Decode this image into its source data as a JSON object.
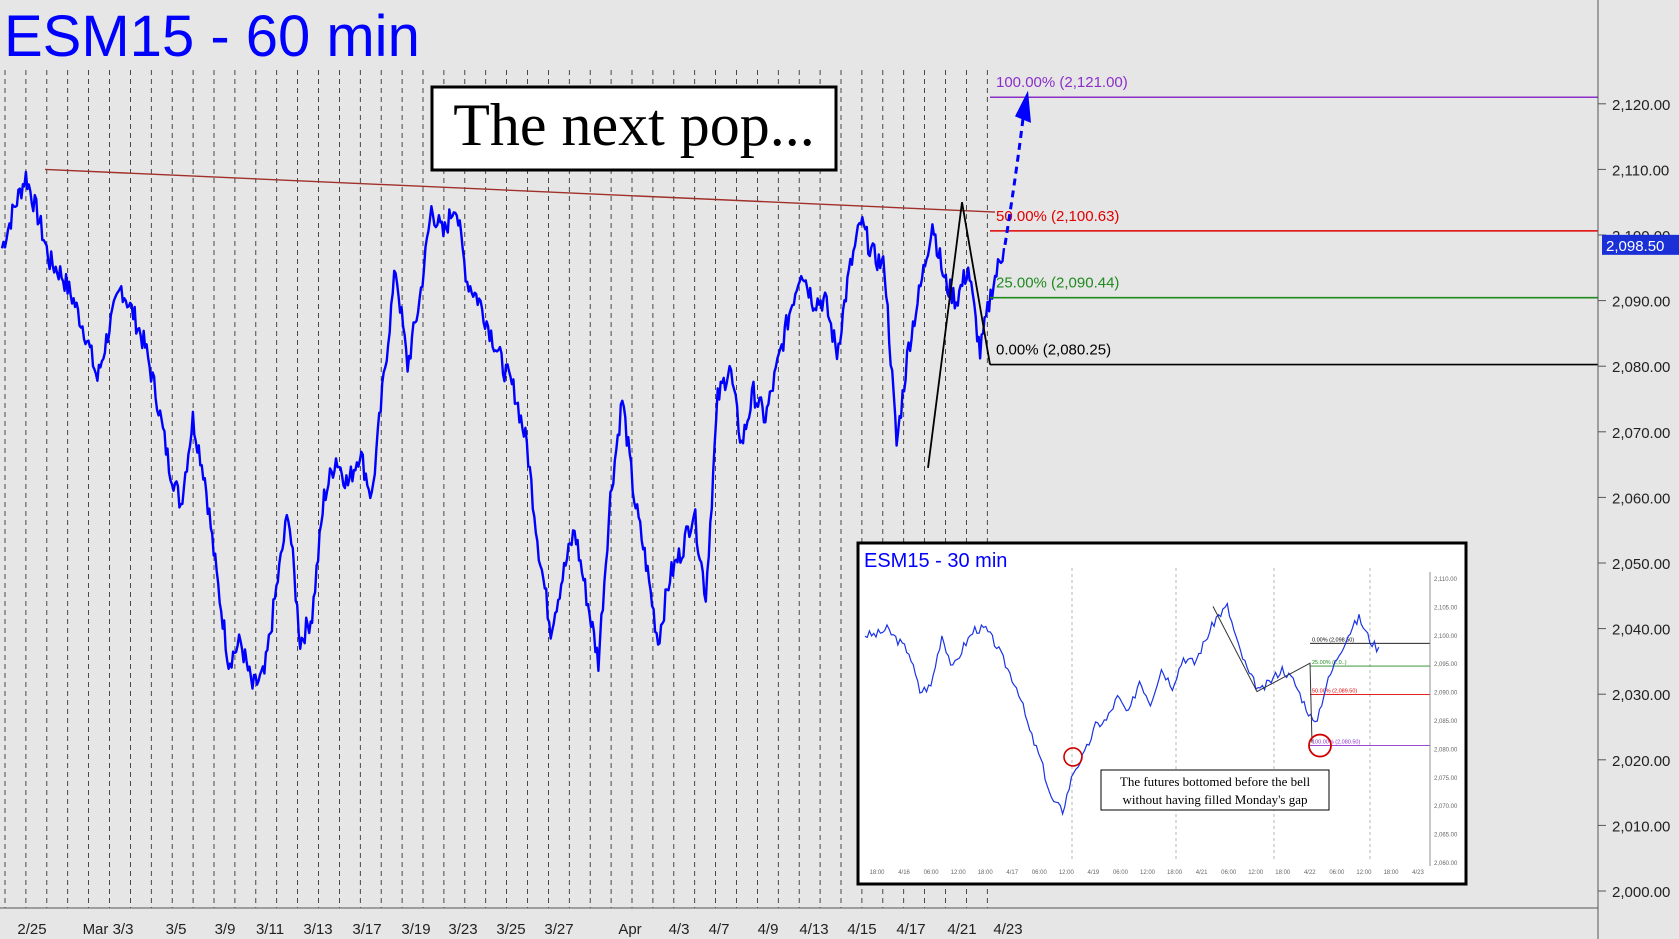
{
  "title": "ESM15 - 60 min",
  "annotation": "The next pop...",
  "colors": {
    "background": "#e6e6e6",
    "price_line": "#0000ff",
    "fib_100": "#8b2fc9",
    "fib_50": "#e00000",
    "fib_25": "#1f8a1f",
    "fib_0": "#000000",
    "trendline": "#a0302a",
    "gridline": "#222222"
  },
  "chart_data": {
    "type": "line",
    "title": "ESM15 - 60 min",
    "xlabel": "",
    "ylabel": "",
    "ylim": [
      1998,
      2134
    ],
    "yticks": [
      2000,
      2010,
      2020,
      2030,
      2040,
      2050,
      2060,
      2070,
      2080,
      2090,
      2100,
      2110,
      2120
    ],
    "ytick_labels": [
      "2,000.00",
      "2,010.00",
      "2,020.00",
      "2,030.00",
      "2,040.00",
      "2,050.00",
      "2,060.00",
      "2,070.00",
      "2,080.00",
      "2,090.00",
      "2,100.00",
      "2,110.00",
      "2,120.00"
    ],
    "xticks": [
      "2/25",
      "Mar 3/3",
      "3/5",
      "3/9",
      "3/11",
      "3/13",
      "3/17",
      "3/19",
      "3/23",
      "3/25",
      "3/27",
      "Apr",
      "4/3",
      "4/7",
      "4/9",
      "4/13",
      "4/15",
      "4/17",
      "4/21",
      "4/23"
    ],
    "grid": true,
    "last_price": 2098.5,
    "last_price_label": "2,098.50",
    "series": [
      {
        "values": [
          2098,
          2104,
          2109,
          2103,
          2096,
          2094,
          2090,
          2085,
          2078,
          2086,
          2092,
          2088,
          2083,
          2075,
          2065,
          2059,
          2072,
          2063,
          2048,
          2035,
          2038,
          2031,
          2033,
          2046,
          2058,
          2038,
          2042,
          2060,
          2066,
          2062,
          2067,
          2060,
          2078,
          2095,
          2080,
          2090,
          2104,
          2100,
          2105,
          2093,
          2090,
          2085,
          2080,
          2076,
          2068,
          2052,
          2040,
          2048,
          2055,
          2045,
          2035,
          2060,
          2075,
          2060,
          2050,
          2038,
          2048,
          2052,
          2058,
          2045,
          2075,
          2080,
          2068,
          2076,
          2072,
          2080,
          2088,
          2095,
          2090,
          2090,
          2082,
          2094,
          2102,
          2097,
          2095,
          2068,
          2083,
          2092,
          2102,
          2093,
          2090,
          2095,
          2082,
          2092,
          2098
        ]
      }
    ],
    "fib_levels": [
      {
        "label": "100.00% (2,121.00)",
        "value": 2121.0
      },
      {
        "label": "50.00% (2,100.63)",
        "value": 2100.63
      },
      {
        "label": "25.00% (2,090.44)",
        "value": 2090.44
      },
      {
        "label": "0.00% (2,080.25)",
        "value": 2080.25
      }
    ]
  },
  "inset": {
    "title": "ESM15 - 30 min",
    "annotation_line1": "The futures bottomed before the bell",
    "annotation_line2": "without having filled Monday's gap",
    "y_labels": [
      "2,110.00",
      "2,105.00",
      "2,100.00",
      "2,095.00",
      "2,090.00",
      "2,085.00",
      "2,080.00",
      "2,075.00",
      "2,070.00",
      "2,065.00",
      "2,060.00"
    ],
    "x_labels": [
      "18:00",
      "4/16",
      "06:00",
      "12:00",
      "18:00",
      "4/17",
      "06:00",
      "12:00",
      "4/19",
      "06:00",
      "12:00",
      "18:00",
      "4/21",
      "06:00",
      "12:00",
      "18:00",
      "4/22",
      "06:00",
      "12:00",
      "18:00",
      "4/23"
    ],
    "fib_labels": [
      "0.00% (2,098.50)",
      "25.00% (2,0..)",
      "50.00% (2,089.50)",
      "100.00% (2,080.50)"
    ],
    "series": [
      2100,
      2100,
      2101,
      2099,
      2097,
      2090,
      2091,
      2100,
      2094,
      2098,
      2101,
      2101,
      2098,
      2094,
      2090,
      2083,
      2078,
      2071,
      2069,
      2076,
      2079,
      2084,
      2085,
      2089,
      2086,
      2092,
      2088,
      2094,
      2091,
      2096,
      2095,
      2099,
      2103,
      2105,
      2098,
      2093,
      2090,
      2092,
      2094,
      2092,
      2088,
      2084,
      2091,
      2096,
      2100,
      2103,
      2099,
      2097
    ]
  }
}
